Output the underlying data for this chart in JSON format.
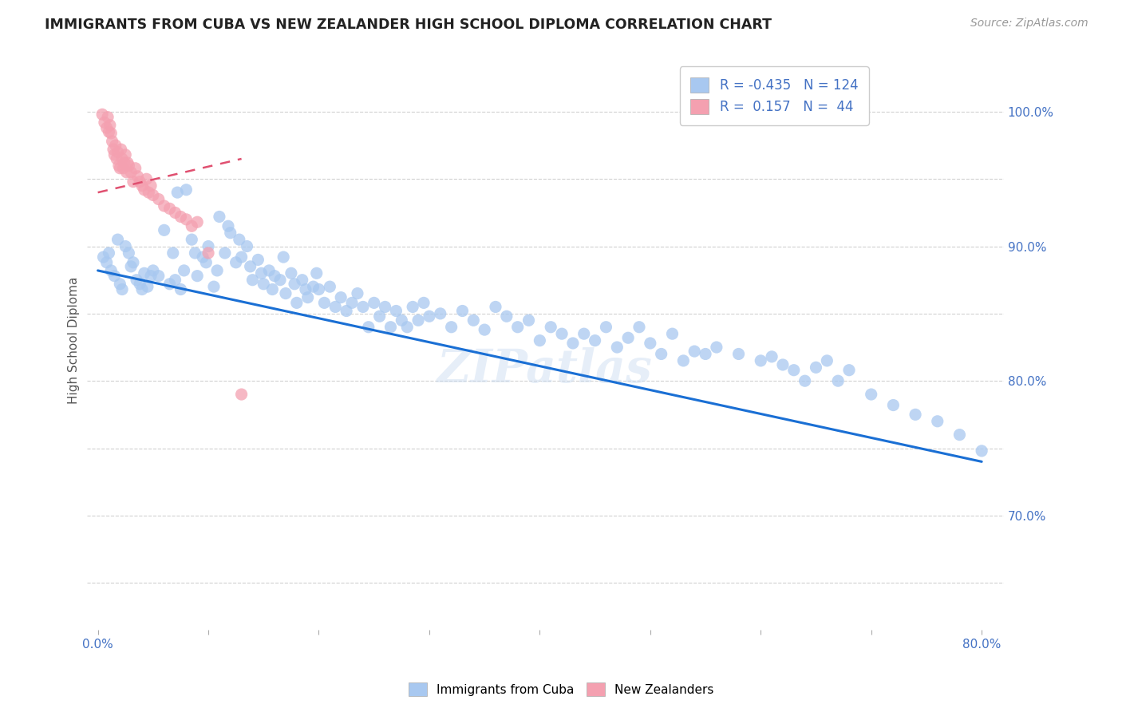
{
  "title": "IMMIGRANTS FROM CUBA VS NEW ZEALANDER HIGH SCHOOL DIPLOMA CORRELATION CHART",
  "source": "Source: ZipAtlas.com",
  "ylabel": "High School Diploma",
  "xlim": [
    -0.01,
    0.82
  ],
  "ylim": [
    0.615,
    1.045
  ],
  "legend_r_blue": "-0.435",
  "legend_n_blue": "124",
  "legend_r_pink": "0.157",
  "legend_n_pink": "44",
  "legend_label_blue": "Immigrants from Cuba",
  "legend_label_pink": "New Zealanders",
  "blue_scatter_color": "#a8c8f0",
  "pink_scatter_color": "#f4a0b0",
  "blue_line_color": "#1a6fd4",
  "pink_line_color": "#e05070",
  "watermark": "ZIPatlas",
  "blue_trend_x0": 0.0,
  "blue_trend_y0": 0.882,
  "blue_trend_x1": 0.8,
  "blue_trend_y1": 0.74,
  "pink_trend_x0": 0.0,
  "pink_trend_y0": 0.94,
  "pink_trend_x1": 0.13,
  "pink_trend_y1": 0.965,
  "blue_points_x": [
    0.005,
    0.008,
    0.01,
    0.012,
    0.015,
    0.018,
    0.02,
    0.022,
    0.025,
    0.028,
    0.03,
    0.032,
    0.035,
    0.038,
    0.04,
    0.042,
    0.045,
    0.048,
    0.05,
    0.055,
    0.06,
    0.065,
    0.068,
    0.07,
    0.072,
    0.075,
    0.078,
    0.08,
    0.085,
    0.088,
    0.09,
    0.095,
    0.098,
    0.1,
    0.105,
    0.108,
    0.11,
    0.115,
    0.118,
    0.12,
    0.125,
    0.128,
    0.13,
    0.135,
    0.138,
    0.14,
    0.145,
    0.148,
    0.15,
    0.155,
    0.158,
    0.16,
    0.165,
    0.168,
    0.17,
    0.175,
    0.178,
    0.18,
    0.185,
    0.188,
    0.19,
    0.195,
    0.198,
    0.2,
    0.205,
    0.21,
    0.215,
    0.22,
    0.225,
    0.23,
    0.235,
    0.24,
    0.245,
    0.25,
    0.255,
    0.26,
    0.265,
    0.27,
    0.275,
    0.28,
    0.285,
    0.29,
    0.295,
    0.3,
    0.31,
    0.32,
    0.33,
    0.34,
    0.35,
    0.36,
    0.37,
    0.38,
    0.39,
    0.4,
    0.41,
    0.42,
    0.43,
    0.44,
    0.45,
    0.46,
    0.47,
    0.48,
    0.49,
    0.5,
    0.51,
    0.52,
    0.53,
    0.54,
    0.55,
    0.56,
    0.58,
    0.6,
    0.61,
    0.62,
    0.63,
    0.64,
    0.65,
    0.66,
    0.67,
    0.68,
    0.7,
    0.72,
    0.74,
    0.76,
    0.78,
    0.8
  ],
  "blue_points_y": [
    0.892,
    0.888,
    0.895,
    0.882,
    0.878,
    0.905,
    0.872,
    0.868,
    0.9,
    0.895,
    0.885,
    0.888,
    0.875,
    0.872,
    0.868,
    0.88,
    0.87,
    0.878,
    0.882,
    0.878,
    0.912,
    0.872,
    0.895,
    0.875,
    0.94,
    0.868,
    0.882,
    0.942,
    0.905,
    0.895,
    0.878,
    0.892,
    0.888,
    0.9,
    0.87,
    0.882,
    0.922,
    0.895,
    0.915,
    0.91,
    0.888,
    0.905,
    0.892,
    0.9,
    0.885,
    0.875,
    0.89,
    0.88,
    0.872,
    0.882,
    0.868,
    0.878,
    0.875,
    0.892,
    0.865,
    0.88,
    0.872,
    0.858,
    0.875,
    0.868,
    0.862,
    0.87,
    0.88,
    0.868,
    0.858,
    0.87,
    0.855,
    0.862,
    0.852,
    0.858,
    0.865,
    0.855,
    0.84,
    0.858,
    0.848,
    0.855,
    0.84,
    0.852,
    0.845,
    0.84,
    0.855,
    0.845,
    0.858,
    0.848,
    0.85,
    0.84,
    0.852,
    0.845,
    0.838,
    0.855,
    0.848,
    0.84,
    0.845,
    0.83,
    0.84,
    0.835,
    0.828,
    0.835,
    0.83,
    0.84,
    0.825,
    0.832,
    0.84,
    0.828,
    0.82,
    0.835,
    0.815,
    0.822,
    0.82,
    0.825,
    0.82,
    0.815,
    0.818,
    0.812,
    0.808,
    0.8,
    0.81,
    0.815,
    0.8,
    0.808,
    0.79,
    0.782,
    0.775,
    0.77,
    0.76,
    0.748
  ],
  "pink_points_x": [
    0.004,
    0.006,
    0.008,
    0.009,
    0.01,
    0.011,
    0.012,
    0.013,
    0.014,
    0.015,
    0.016,
    0.017,
    0.018,
    0.019,
    0.02,
    0.021,
    0.022,
    0.023,
    0.024,
    0.025,
    0.026,
    0.027,
    0.028,
    0.03,
    0.032,
    0.034,
    0.036,
    0.038,
    0.04,
    0.042,
    0.044,
    0.046,
    0.048,
    0.05,
    0.055,
    0.06,
    0.065,
    0.07,
    0.075,
    0.08,
    0.085,
    0.09,
    0.1,
    0.13
  ],
  "pink_points_y": [
    0.998,
    0.992,
    0.988,
    0.996,
    0.985,
    0.99,
    0.984,
    0.978,
    0.972,
    0.968,
    0.975,
    0.965,
    0.97,
    0.96,
    0.958,
    0.972,
    0.965,
    0.958,
    0.962,
    0.968,
    0.955,
    0.962,
    0.96,
    0.955,
    0.948,
    0.958,
    0.952,
    0.948,
    0.945,
    0.942,
    0.95,
    0.94,
    0.945,
    0.938,
    0.935,
    0.93,
    0.928,
    0.925,
    0.922,
    0.92,
    0.915,
    0.918,
    0.895,
    0.79
  ]
}
